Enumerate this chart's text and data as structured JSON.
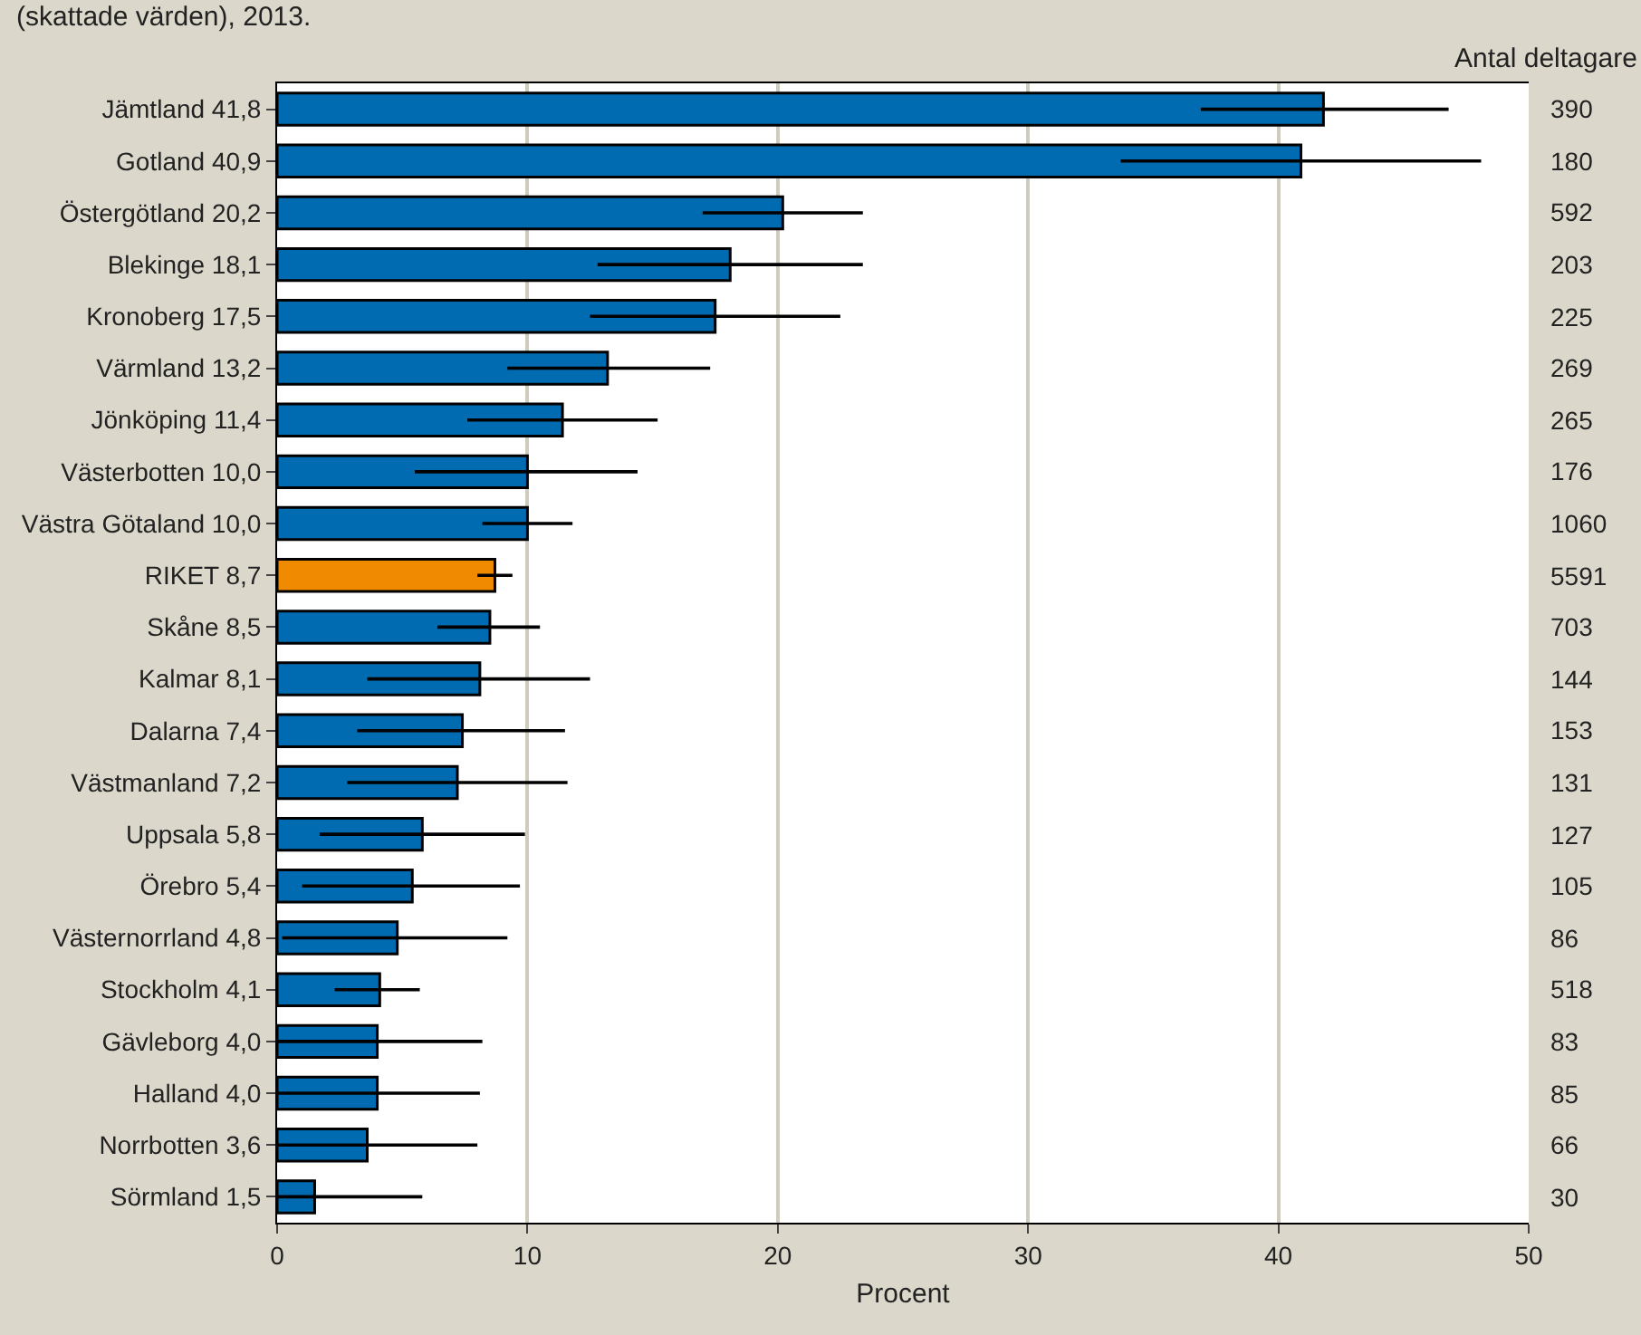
{
  "chart_data": {
    "type": "bar",
    "orientation": "horizontal",
    "title": "(skattade värden), 2013.",
    "xlabel": "Procent",
    "categories": [
      "Jämtland 41,8",
      "Gotland 40,9",
      "Östergötland 20,2",
      "Blekinge 18,1",
      "Kronoberg 17,5",
      "Värmland 13,2",
      "Jönköping 11,4",
      "Västerbotten 10,0",
      "Västra Götaland 10,0",
      "RIKET 8,7",
      "Skåne 8,5",
      "Kalmar 8,1",
      "Dalarna 7,4",
      "Västmanland 7,2",
      "Uppsala 5,8",
      "Örebro 5,4",
      "Västernorrland 4,8",
      "Stockholm 4,1",
      "Gävleborg 4,0",
      "Halland 4,0",
      "Norrbotten 3,6",
      "Sörmland 1,5"
    ],
    "values": [
      41.8,
      40.9,
      20.2,
      18.1,
      17.5,
      13.2,
      11.4,
      10.0,
      10.0,
      8.7,
      8.5,
      8.1,
      7.4,
      7.2,
      5.8,
      5.4,
      4.8,
      4.1,
      4.0,
      4.0,
      3.6,
      1.5
    ],
    "colors": [
      "#006bb0",
      "#006bb0",
      "#006bb0",
      "#006bb0",
      "#006bb0",
      "#006bb0",
      "#006bb0",
      "#006bb0",
      "#006bb0",
      "#f08a00",
      "#006bb0",
      "#006bb0",
      "#006bb0",
      "#006bb0",
      "#006bb0",
      "#006bb0",
      "#006bb0",
      "#006bb0",
      "#006bb0",
      "#006bb0",
      "#006bb0",
      "#006bb0"
    ],
    "errors": [
      [
        36.9,
        46.8
      ],
      [
        33.7,
        48.1
      ],
      [
        17.0,
        23.4
      ],
      [
        12.8,
        23.4
      ],
      [
        12.5,
        22.5
      ],
      [
        9.2,
        17.3
      ],
      [
        7.6,
        15.2
      ],
      [
        5.5,
        14.4
      ],
      [
        8.2,
        11.8
      ],
      [
        8.0,
        9.4
      ],
      [
        6.4,
        10.5
      ],
      [
        3.6,
        12.5
      ],
      [
        3.2,
        11.5
      ],
      [
        2.8,
        11.6
      ],
      [
        1.7,
        9.9
      ],
      [
        1.0,
        9.7
      ],
      [
        0.2,
        9.2
      ],
      [
        2.3,
        5.7
      ],
      [
        0.0,
        8.2
      ],
      [
        0.0,
        8.1
      ],
      [
        0.0,
        8.0
      ],
      [
        0.0,
        5.8
      ]
    ],
    "xlim": [
      0,
      50
    ],
    "xticks": [
      0,
      10,
      20,
      30,
      40,
      50
    ],
    "grid": "x",
    "annotations": [
      "Antal deltagare",
      "390",
      "180",
      "592",
      "203",
      "225",
      "269",
      "265",
      "176",
      "1060",
      "5591",
      "703",
      "144",
      "153",
      "131",
      "127",
      "105",
      "86",
      "518",
      "83",
      "85",
      "66",
      "30"
    ]
  }
}
